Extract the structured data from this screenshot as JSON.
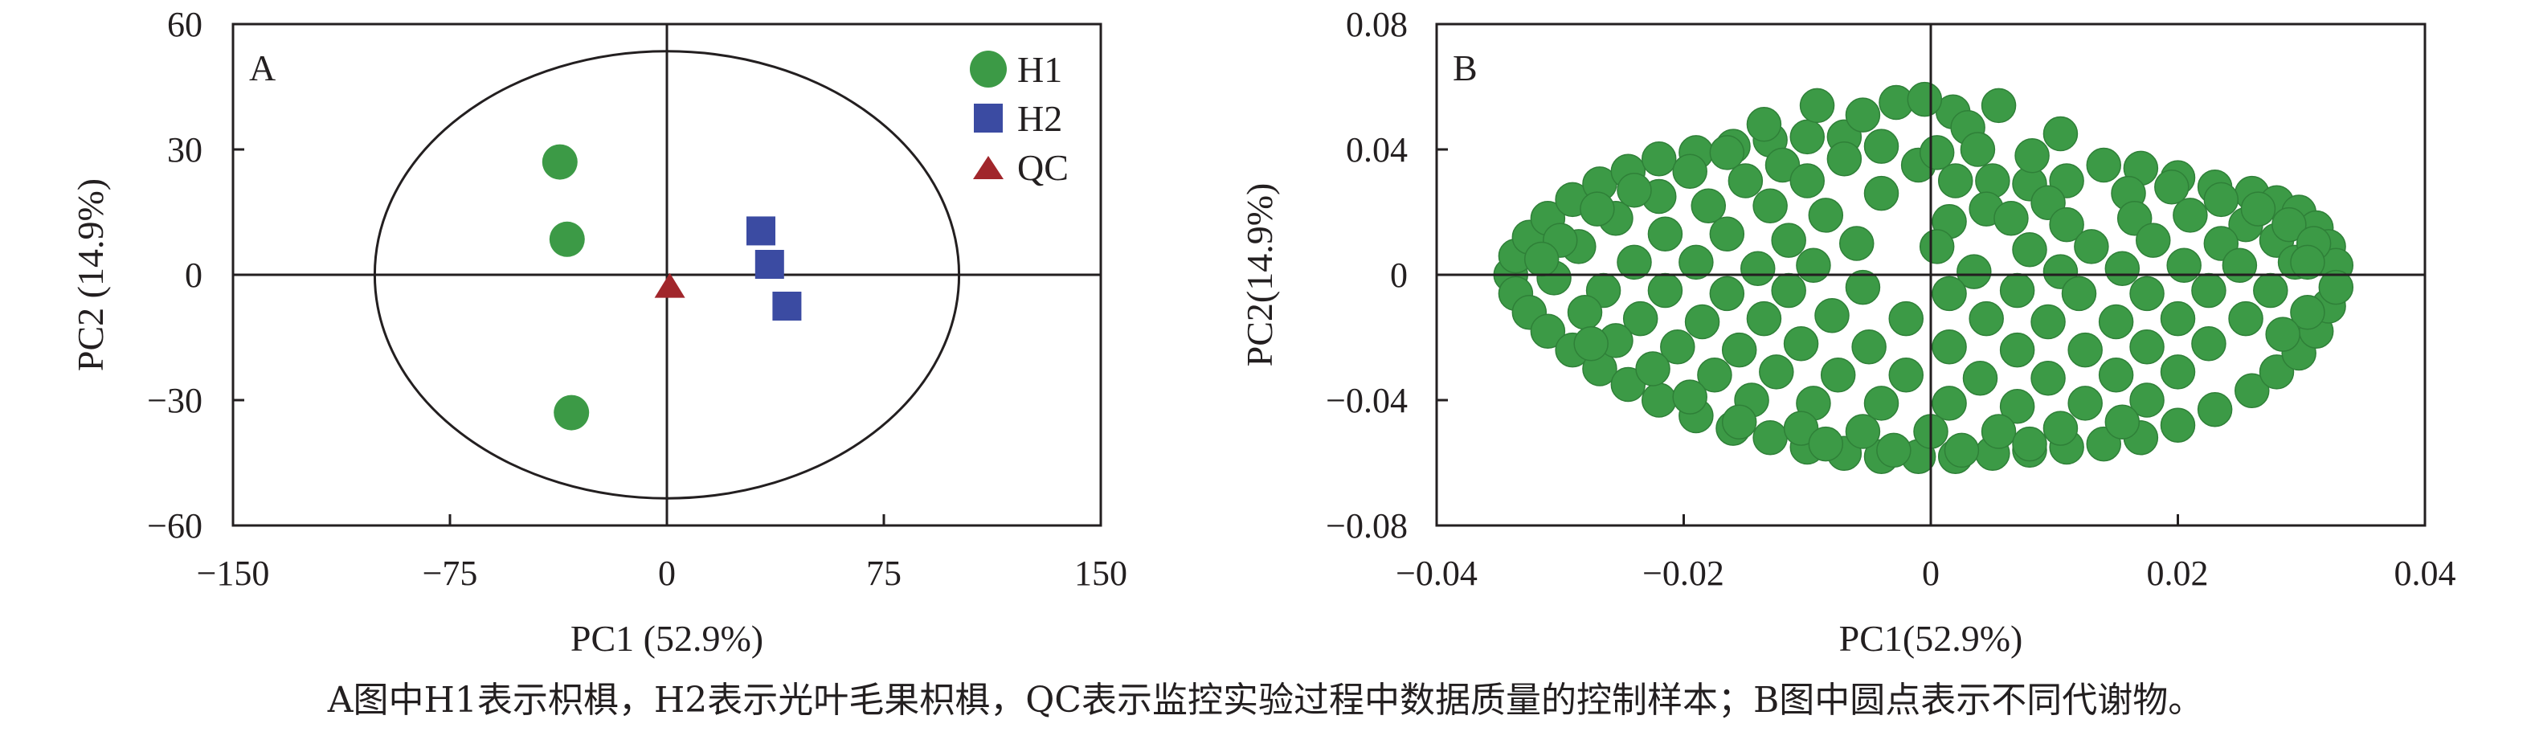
{
  "chart_data": [
    {
      "type": "scatter",
      "panel_label": "A",
      "xlabel": "PC1 (52.9%)",
      "ylabel": "PC2 (14.9%)",
      "xlim": [
        -150,
        150
      ],
      "ylim": [
        -60,
        60
      ],
      "xticks": [
        "−150",
        "−75",
        "0",
        "75",
        "150"
      ],
      "yticks": [
        "60",
        "30",
        "0",
        "−30",
        "−60"
      ],
      "legend_position": "top-right",
      "confidence_ellipse": {
        "center": [
          0,
          0
        ],
        "rx": 101,
        "ry": 53.5
      },
      "series": [
        {
          "name": "H1",
          "marker": "circle",
          "color": "#3c9a46",
          "points": [
            [
              -37,
              27
            ],
            [
              -34.5,
              8.5
            ],
            [
              -33,
              -33
            ]
          ]
        },
        {
          "name": "H2",
          "marker": "square",
          "color": "#3b4ba2",
          "points": [
            [
              32.5,
              10.5
            ],
            [
              35.5,
              2.5
            ],
            [
              41.5,
              -7.5
            ]
          ]
        },
        {
          "name": "QC",
          "marker": "triangle",
          "color": "#a1262b",
          "points": [
            [
              1,
              -3
            ]
          ]
        }
      ]
    },
    {
      "type": "scatter",
      "panel_label": "B",
      "xlabel": "PC1(52.9%)",
      "ylabel": "PC2(14.9%)",
      "xlim": [
        -0.04,
        0.04
      ],
      "ylim": [
        -0.08,
        0.08
      ],
      "xticks": [
        "−0.04",
        "−0.02",
        "0",
        "0.02",
        "0.04"
      ],
      "yticks": [
        "0.08",
        "0.04",
        "0",
        "−0.04",
        "−0.08"
      ],
      "series": [
        {
          "marker": "circle",
          "color": "#3c9a46",
          "points": [
            [
              -0.034,
              0.0
            ],
            [
              -0.0336,
              0.006
            ],
            [
              -0.0336,
              -0.006
            ],
            [
              -0.0325,
              0.012
            ],
            [
              -0.0325,
              -0.012
            ],
            [
              -0.031,
              0.018
            ],
            [
              -0.031,
              -0.018
            ],
            [
              -0.029,
              0.024
            ],
            [
              -0.029,
              -0.024
            ],
            [
              -0.0268,
              0.029
            ],
            [
              -0.0268,
              -0.03
            ],
            [
              -0.0245,
              0.033
            ],
            [
              -0.0245,
              -0.035
            ],
            [
              -0.022,
              0.037
            ],
            [
              -0.022,
              -0.04
            ],
            [
              -0.019,
              0.039
            ],
            [
              -0.019,
              -0.045
            ],
            [
              -0.016,
              0.041
            ],
            [
              -0.016,
              -0.049
            ],
            [
              -0.013,
              0.043
            ],
            [
              -0.013,
              -0.052
            ],
            [
              -0.01,
              0.044
            ],
            [
              -0.01,
              -0.055
            ],
            [
              -0.007,
              0.044
            ],
            [
              -0.007,
              -0.057
            ],
            [
              -0.004,
              0.041
            ],
            [
              -0.004,
              -0.058
            ],
            [
              -0.001,
              0.035
            ],
            [
              -0.001,
              -0.058
            ],
            [
              0.002,
              0.03
            ],
            [
              0.002,
              -0.058
            ],
            [
              0.005,
              0.03
            ],
            [
              0.005,
              -0.057
            ],
            [
              0.008,
              0.029
            ],
            [
              0.008,
              -0.056
            ],
            [
              0.011,
              0.03
            ],
            [
              0.011,
              -0.055
            ],
            [
              0.014,
              0.035
            ],
            [
              0.014,
              -0.054
            ],
            [
              0.017,
              0.034
            ],
            [
              0.017,
              -0.052
            ],
            [
              0.02,
              0.031
            ],
            [
              0.02,
              -0.048
            ],
            [
              0.023,
              0.028
            ],
            [
              0.023,
              -0.043
            ],
            [
              0.026,
              0.026
            ],
            [
              0.026,
              -0.037
            ],
            [
              0.028,
              0.023
            ],
            [
              0.028,
              -0.031
            ],
            [
              0.0298,
              0.02
            ],
            [
              0.0298,
              -0.025
            ],
            [
              0.0312,
              0.015
            ],
            [
              0.0312,
              -0.018
            ],
            [
              0.0322,
              0.009
            ],
            [
              0.0322,
              -0.01
            ],
            [
              0.0328,
              0.003
            ],
            [
              0.0328,
              -0.004
            ],
            [
              0.0055,
              0.054
            ],
            [
              0.0105,
              0.045
            ],
            [
              0.0018,
              0.052
            ],
            [
              -0.0092,
              0.054
            ],
            [
              -0.0055,
              0.051
            ],
            [
              -0.0028,
              0.055
            ],
            [
              -0.0005,
              0.056
            ],
            [
              -0.0135,
              0.048
            ],
            [
              0.003,
              0.047
            ],
            [
              0.0038,
              0.04
            ],
            [
              0.0082,
              0.038
            ],
            [
              -0.0165,
              0.039
            ],
            [
              -0.012,
              0.035
            ],
            [
              -0.007,
              0.037
            ],
            [
              0.0005,
              0.039
            ],
            [
              -0.0195,
              0.033
            ],
            [
              -0.015,
              0.03
            ],
            [
              -0.01,
              0.03
            ],
            [
              -0.004,
              0.026
            ],
            [
              0.0195,
              0.028
            ],
            [
              0.016,
              0.026
            ],
            [
              0.0095,
              0.023
            ],
            [
              0.0045,
              0.021
            ],
            [
              0.0235,
              0.024
            ],
            [
              -0.022,
              0.025
            ],
            [
              -0.018,
              0.022
            ],
            [
              -0.013,
              0.022
            ],
            [
              -0.0085,
              0.019
            ],
            [
              0.0015,
              0.017
            ],
            [
              0.0065,
              0.018
            ],
            [
              0.011,
              0.016
            ],
            [
              0.0165,
              0.018
            ],
            [
              0.021,
              0.019
            ],
            [
              0.0255,
              0.016
            ],
            [
              -0.0255,
              0.018
            ],
            [
              -0.0215,
              0.013
            ],
            [
              -0.0165,
              0.013
            ],
            [
              -0.0115,
              0.011
            ],
            [
              -0.006,
              0.01
            ],
            [
              0.0005,
              0.009
            ],
            [
              0.008,
              0.008
            ],
            [
              0.013,
              0.009
            ],
            [
              0.018,
              0.011
            ],
            [
              0.0235,
              0.01
            ],
            [
              0.028,
              0.011
            ],
            [
              -0.0285,
              0.009
            ],
            [
              -0.024,
              0.004
            ],
            [
              -0.019,
              0.004
            ],
            [
              -0.014,
              0.002
            ],
            [
              -0.0095,
              0.003
            ],
            [
              0.0035,
              0.001
            ],
            [
              0.0105,
              0.001
            ],
            [
              0.0155,
              0.002
            ],
            [
              0.0205,
              0.003
            ],
            [
              0.025,
              0.003
            ],
            [
              0.0295,
              0.004
            ],
            [
              -0.0305,
              -0.001
            ],
            [
              -0.0265,
              -0.005
            ],
            [
              -0.0215,
              -0.005
            ],
            [
              -0.0165,
              -0.006
            ],
            [
              -0.0115,
              -0.005
            ],
            [
              -0.0055,
              -0.004
            ],
            [
              0.0015,
              -0.006
            ],
            [
              0.007,
              -0.005
            ],
            [
              0.012,
              -0.006
            ],
            [
              0.0175,
              -0.006
            ],
            [
              0.0225,
              -0.005
            ],
            [
              0.0275,
              -0.005
            ],
            [
              -0.028,
              -0.012
            ],
            [
              -0.0235,
              -0.014
            ],
            [
              -0.0185,
              -0.015
            ],
            [
              -0.0135,
              -0.014
            ],
            [
              -0.008,
              -0.013
            ],
            [
              -0.002,
              -0.014
            ],
            [
              0.0045,
              -0.014
            ],
            [
              0.0095,
              -0.015
            ],
            [
              0.015,
              -0.015
            ],
            [
              0.02,
              -0.014
            ],
            [
              0.0255,
              -0.014
            ],
            [
              -0.0255,
              -0.021
            ],
            [
              -0.0205,
              -0.023
            ],
            [
              -0.0155,
              -0.024
            ],
            [
              -0.0105,
              -0.022
            ],
            [
              -0.005,
              -0.023
            ],
            [
              0.0015,
              -0.023
            ],
            [
              0.007,
              -0.024
            ],
            [
              0.0125,
              -0.024
            ],
            [
              0.0175,
              -0.023
            ],
            [
              0.0225,
              -0.022
            ],
            [
              -0.0225,
              -0.03
            ],
            [
              -0.0175,
              -0.032
            ],
            [
              -0.0125,
              -0.031
            ],
            [
              -0.0075,
              -0.032
            ],
            [
              -0.002,
              -0.032
            ],
            [
              0.004,
              -0.033
            ],
            [
              0.0095,
              -0.033
            ],
            [
              0.015,
              -0.032
            ],
            [
              0.02,
              -0.031
            ],
            [
              -0.0195,
              -0.039
            ],
            [
              -0.0145,
              -0.04
            ],
            [
              -0.0095,
              -0.041
            ],
            [
              -0.004,
              -0.041
            ],
            [
              0.0015,
              -0.041
            ],
            [
              0.007,
              -0.042
            ],
            [
              0.0125,
              -0.041
            ],
            [
              0.0175,
              -0.04
            ],
            [
              -0.0155,
              -0.047
            ],
            [
              -0.0105,
              -0.049
            ],
            [
              -0.0055,
              -0.05
            ],
            [
              0.0,
              -0.05
            ],
            [
              0.0055,
              -0.05
            ],
            [
              0.0105,
              -0.049
            ],
            [
              0.0155,
              -0.047
            ],
            [
              -0.0085,
              -0.054
            ],
            [
              -0.003,
              -0.056
            ],
            [
              0.0025,
              -0.056
            ],
            [
              0.008,
              -0.054
            ],
            [
              -0.03,
              0.011
            ],
            [
              -0.027,
              0.021
            ],
            [
              -0.024,
              0.027
            ],
            [
              0.029,
              0.016
            ],
            [
              0.0305,
              -0.012
            ],
            [
              0.0265,
              0.021
            ],
            [
              0.0285,
              -0.019
            ],
            [
              -0.0275,
              -0.022
            ],
            [
              0.031,
              0.01
            ],
            [
              0.0305,
              0.004
            ],
            [
              -0.0315,
              0.005
            ]
          ]
        }
      ]
    }
  ],
  "caption": "A图中H1表示枳椇，H2表示光叶毛果枳椇，QC表示监控实验过程中数据质量的控制样本；B图中圆点表示不同代谢物。"
}
